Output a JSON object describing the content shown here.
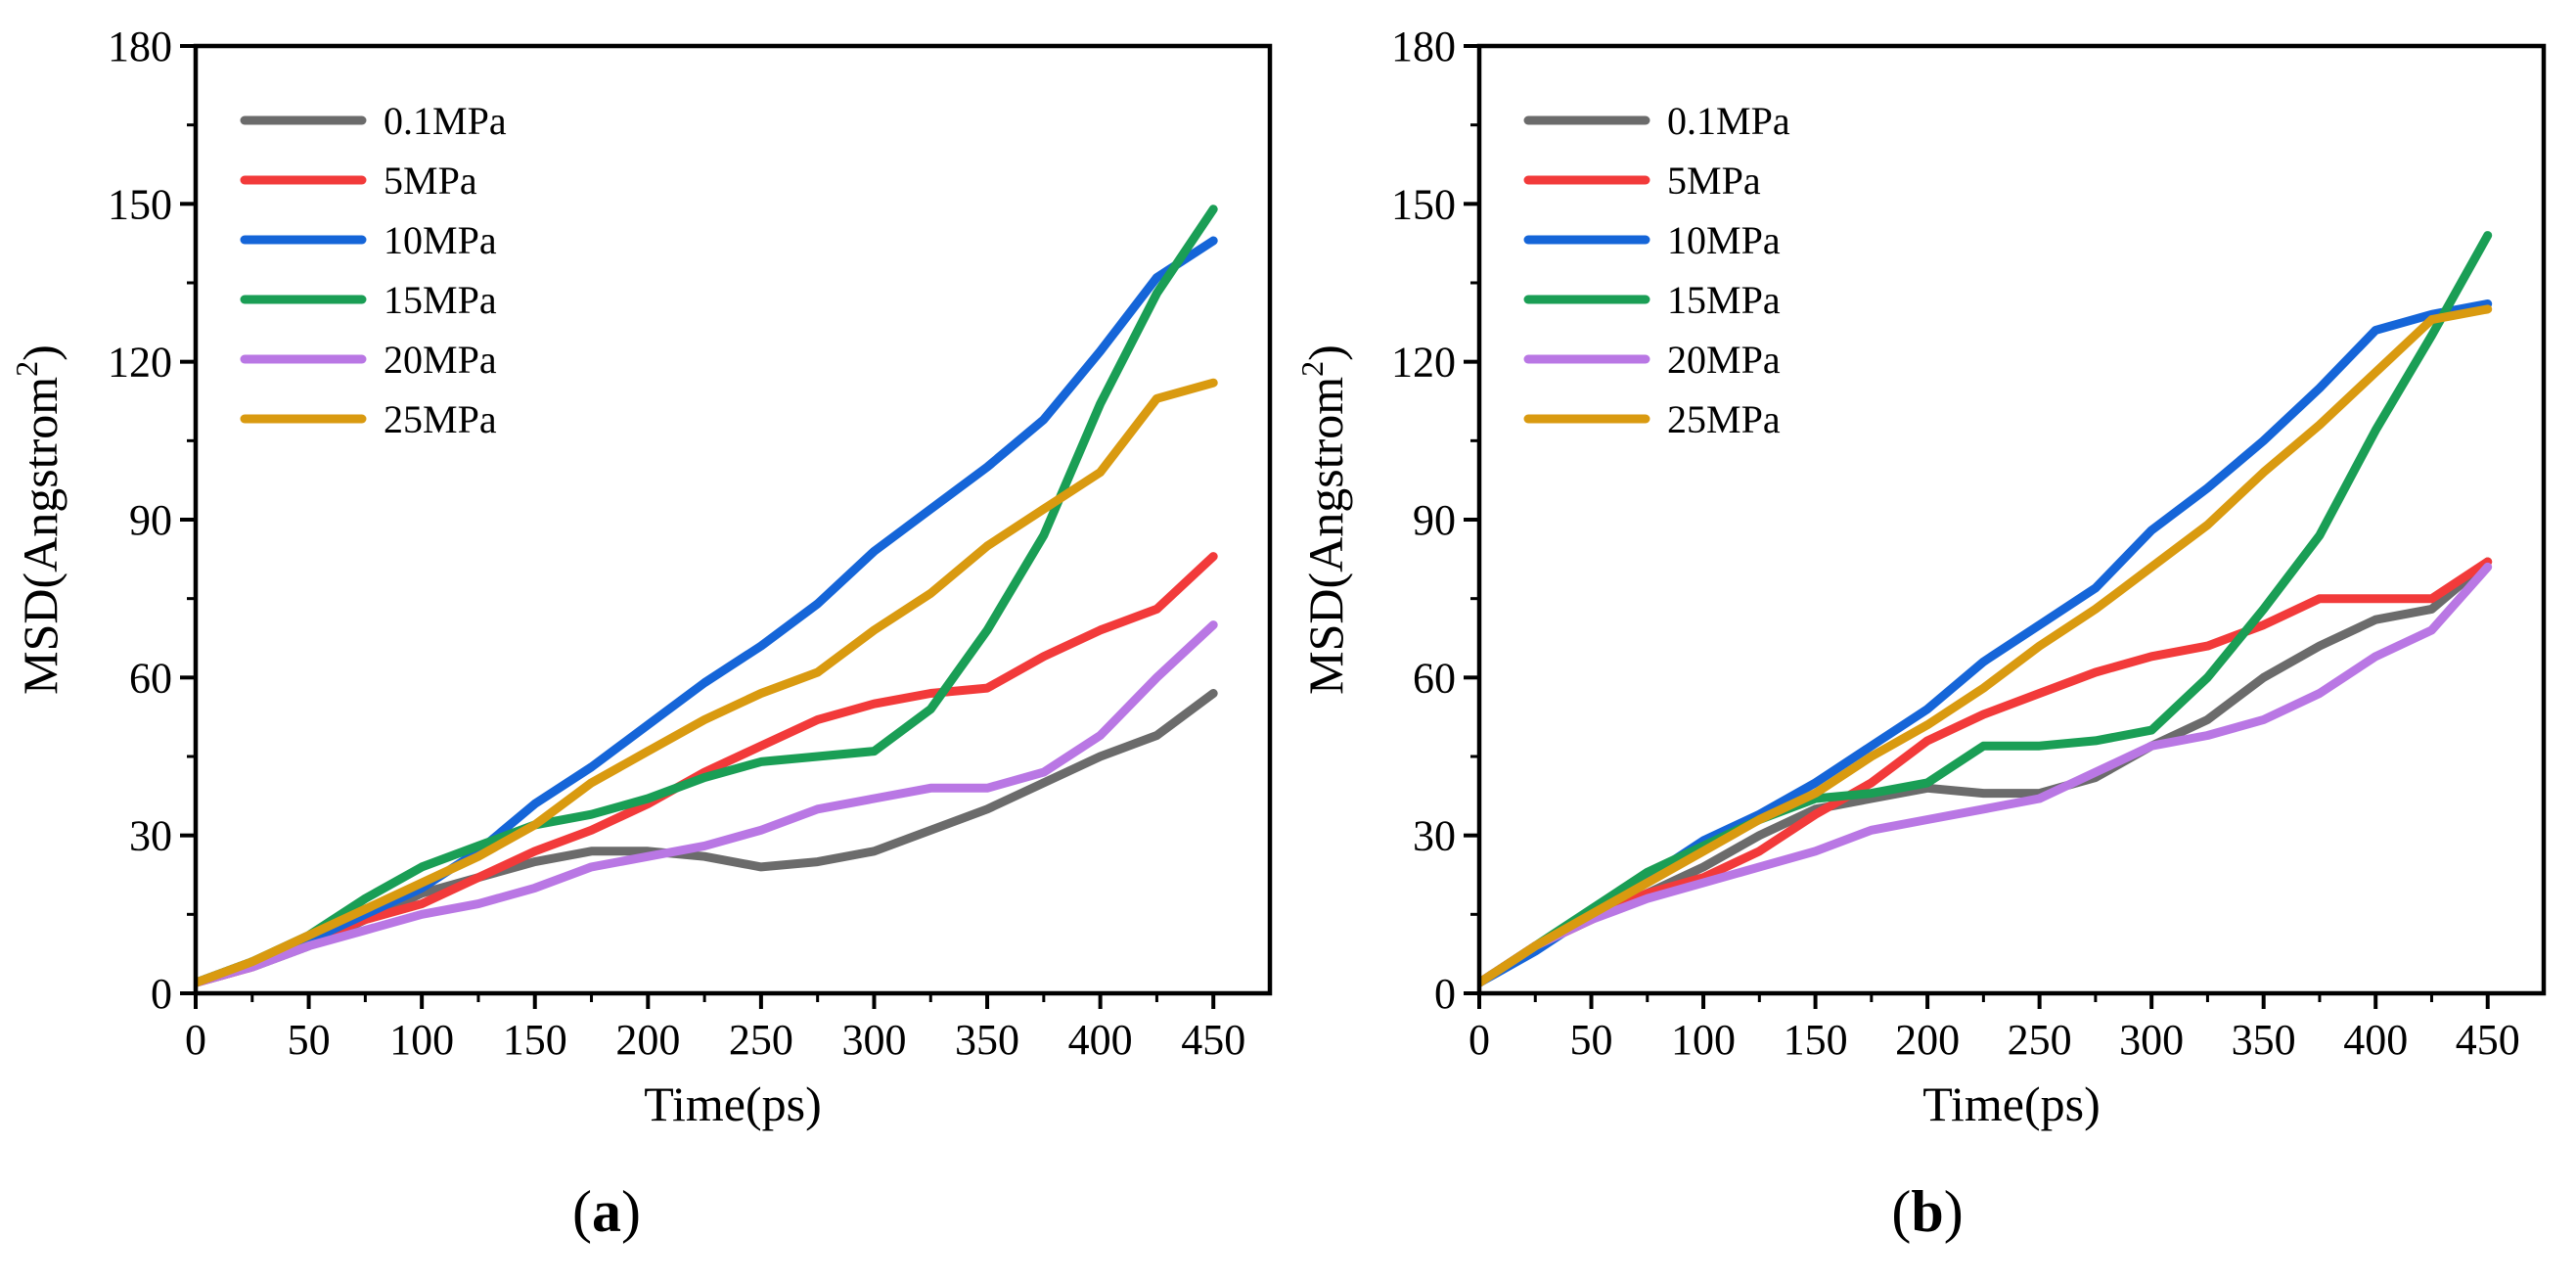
{
  "chart_data": [
    {
      "type": "line",
      "panel_label": "a",
      "xlabel": "Time(ps)",
      "ylabel": "MSD(Angstrom",
      "ylabel_sup": "2",
      "ylabel_close": ")",
      "xlim": [
        0,
        475
      ],
      "ylim": [
        0,
        180
      ],
      "xticks": [
        0,
        50,
        100,
        150,
        200,
        250,
        300,
        350,
        400,
        450
      ],
      "yticks": [
        0,
        30,
        60,
        90,
        120,
        150,
        180
      ],
      "legend_position": "top-left",
      "series": [
        {
          "name": "0.1MPa",
          "color": "#6b6b6b",
          "x": [
            0,
            25,
            50,
            75,
            100,
            125,
            150,
            175,
            200,
            225,
            250,
            275,
            300,
            325,
            350,
            375,
            400,
            425,
            450
          ],
          "y": [
            2,
            5,
            9,
            14,
            19,
            22,
            25,
            27,
            27,
            26,
            24,
            25,
            27,
            31,
            35,
            40,
            45,
            49,
            57
          ]
        },
        {
          "name": "5MPa",
          "color": "#f23a3a",
          "x": [
            0,
            25,
            50,
            75,
            100,
            125,
            150,
            175,
            200,
            225,
            250,
            275,
            300,
            325,
            350,
            375,
            400,
            425,
            450
          ],
          "y": [
            2,
            5,
            10,
            14,
            17,
            22,
            27,
            31,
            36,
            42,
            47,
            52,
            55,
            57,
            58,
            64,
            69,
            73,
            83
          ]
        },
        {
          "name": "10MPa",
          "color": "#1565d8",
          "x": [
            0,
            25,
            50,
            75,
            100,
            125,
            150,
            175,
            200,
            225,
            250,
            275,
            300,
            325,
            350,
            375,
            400,
            425,
            450
          ],
          "y": [
            2,
            6,
            10,
            15,
            20,
            27,
            36,
            43,
            51,
            59,
            66,
            74,
            84,
            92,
            100,
            109,
            122,
            136,
            143
          ]
        },
        {
          "name": "15MPa",
          "color": "#1a9e55",
          "x": [
            0,
            25,
            50,
            75,
            100,
            125,
            150,
            175,
            200,
            225,
            250,
            275,
            300,
            325,
            350,
            375,
            400,
            425,
            450
          ],
          "y": [
            2,
            6,
            11,
            18,
            24,
            28,
            32,
            34,
            37,
            41,
            44,
            45,
            46,
            54,
            69,
            87,
            112,
            133,
            149
          ]
        },
        {
          "name": "20MPa",
          "color": "#b977e4",
          "x": [
            0,
            25,
            50,
            75,
            100,
            125,
            150,
            175,
            200,
            225,
            250,
            275,
            300,
            325,
            350,
            375,
            400,
            425,
            450
          ],
          "y": [
            2,
            5,
            9,
            12,
            15,
            17,
            20,
            24,
            26,
            28,
            31,
            35,
            37,
            39,
            39,
            42,
            49,
            60,
            70
          ]
        },
        {
          "name": "25MPa",
          "color": "#d99a10",
          "x": [
            0,
            25,
            50,
            75,
            100,
            125,
            150,
            175,
            200,
            225,
            250,
            275,
            300,
            325,
            350,
            375,
            400,
            425,
            450
          ],
          "y": [
            2,
            6,
            11,
            16,
            21,
            26,
            32,
            40,
            46,
            52,
            57,
            61,
            69,
            76,
            85,
            92,
            99,
            113,
            116
          ]
        }
      ]
    },
    {
      "type": "line",
      "panel_label": "b",
      "xlabel": "Time(ps)",
      "ylabel": "MSD(Angstrom",
      "ylabel_sup": "2",
      "ylabel_close": ")",
      "xlim": [
        0,
        475
      ],
      "ylim": [
        0,
        180
      ],
      "xticks": [
        0,
        50,
        100,
        150,
        200,
        250,
        300,
        350,
        400,
        450
      ],
      "yticks": [
        0,
        30,
        60,
        90,
        120,
        150,
        180
      ],
      "legend_position": "top-left",
      "series": [
        {
          "name": "0.1MPa",
          "color": "#6b6b6b",
          "x": [
            0,
            25,
            50,
            75,
            100,
            125,
            150,
            175,
            200,
            225,
            250,
            275,
            300,
            325,
            350,
            375,
            400,
            425,
            450
          ],
          "y": [
            2,
            9,
            14,
            19,
            24,
            30,
            35,
            37,
            39,
            38,
            38,
            41,
            47,
            52,
            60,
            66,
            71,
            73,
            82
          ]
        },
        {
          "name": "5MPa",
          "color": "#f23a3a",
          "x": [
            0,
            25,
            50,
            75,
            100,
            125,
            150,
            175,
            200,
            225,
            250,
            275,
            300,
            325,
            350,
            375,
            400,
            425,
            450
          ],
          "y": [
            2,
            9,
            14,
            19,
            22,
            27,
            34,
            40,
            48,
            53,
            57,
            61,
            64,
            66,
            70,
            75,
            75,
            75,
            82
          ]
        },
        {
          "name": "10MPa",
          "color": "#1565d8",
          "x": [
            0,
            25,
            50,
            75,
            100,
            125,
            150,
            175,
            200,
            225,
            250,
            275,
            300,
            325,
            350,
            375,
            400,
            425,
            450
          ],
          "y": [
            2,
            8,
            15,
            22,
            29,
            34,
            40,
            47,
            54,
            63,
            70,
            77,
            88,
            96,
            105,
            115,
            126,
            129,
            131
          ]
        },
        {
          "name": "15MPa",
          "color": "#1a9e55",
          "x": [
            0,
            25,
            50,
            75,
            100,
            125,
            150,
            175,
            200,
            225,
            250,
            275,
            300,
            325,
            350,
            375,
            400,
            425,
            450
          ],
          "y": [
            2,
            9,
            16,
            23,
            28,
            33,
            37,
            38,
            40,
            47,
            47,
            48,
            50,
            60,
            73,
            87,
            107,
            125,
            144
          ]
        },
        {
          "name": "20MPa",
          "color": "#b977e4",
          "x": [
            0,
            25,
            50,
            75,
            100,
            125,
            150,
            175,
            200,
            225,
            250,
            275,
            300,
            325,
            350,
            375,
            400,
            425,
            450
          ],
          "y": [
            2,
            9,
            14,
            18,
            21,
            24,
            27,
            31,
            33,
            35,
            37,
            42,
            47,
            49,
            52,
            57,
            64,
            69,
            81
          ]
        },
        {
          "name": "25MPa",
          "color": "#d99a10",
          "x": [
            0,
            25,
            50,
            75,
            100,
            125,
            150,
            175,
            200,
            225,
            250,
            275,
            300,
            325,
            350,
            375,
            400,
            425,
            450
          ],
          "y": [
            2,
            9,
            15,
            21,
            27,
            33,
            38,
            45,
            51,
            58,
            66,
            73,
            81,
            89,
            99,
            108,
            118,
            128,
            130
          ]
        }
      ]
    }
  ]
}
